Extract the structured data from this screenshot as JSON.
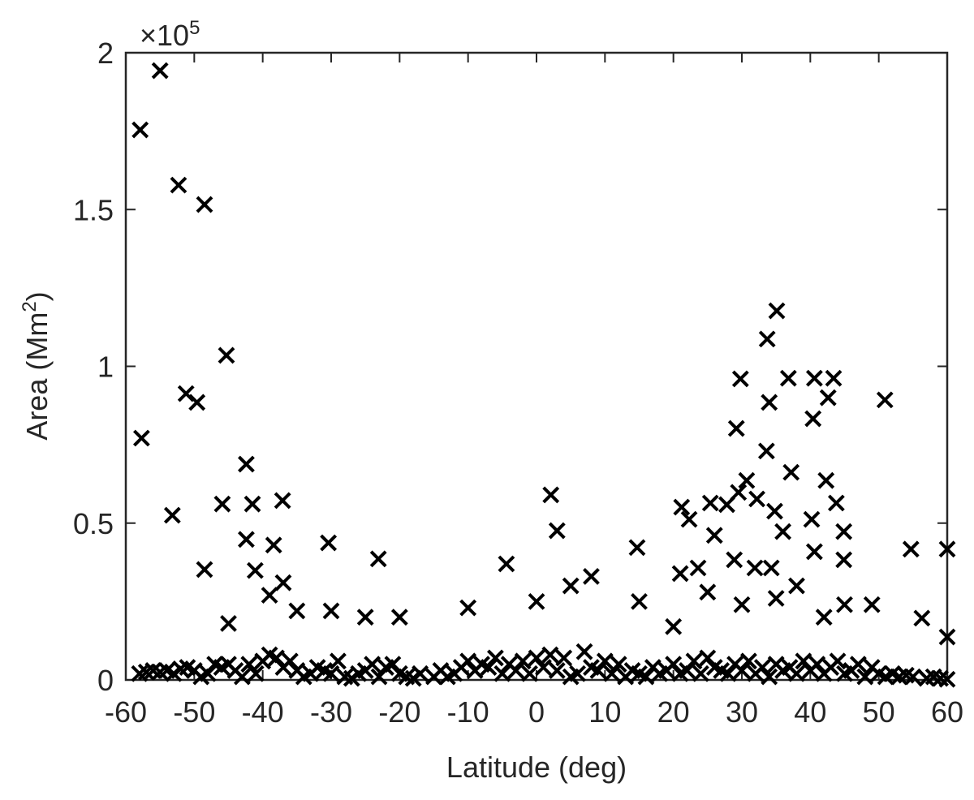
{
  "chart_data": {
    "type": "scatter",
    "x_label": "Latitude (deg)",
    "y_label_parts": [
      "Area (Mm",
      "2",
      ")"
    ],
    "y_exponent_base": "×10",
    "y_exponent": "5",
    "xlim": [
      -60,
      60
    ],
    "xticks": [
      -60,
      -50,
      -40,
      -30,
      -20,
      -10,
      0,
      10,
      20,
      30,
      40,
      50,
      60
    ],
    "ylim": [
      0,
      2
    ],
    "yticks": [
      0,
      0.5,
      1,
      1.5,
      2
    ],
    "color": "#000000",
    "marker": "x",
    "grid": false,
    "x": [
      -57.9,
      -55.0,
      -57.7,
      -52.3,
      -48.5,
      -51.2,
      -49.6,
      -53.2,
      -48.5,
      -45.3,
      -42.4,
      -45.9,
      -41.5,
      -42.4,
      -41.1,
      -37.1,
      -38.4,
      -30.4,
      -23.1,
      2.1,
      3.0,
      -4.4,
      14.7,
      21.2,
      21.0,
      33.7,
      35.1,
      29.8,
      29.2,
      34.0,
      33.6,
      37.2,
      36.8,
      40.6,
      43.4,
      40.4,
      42.6,
      50.9,
      42.3,
      43.8,
      44.9,
      54.7,
      60,
      60,
      56.3,
      30.7,
      29.5,
      32.2,
      34.8,
      22.3,
      25.4,
      27.8,
      36.0,
      31.9,
      34.3,
      40.2,
      40.6,
      44.9,
      28.9,
      26.0,
      23.6,
      -58,
      -57,
      -56,
      -55,
      -54,
      -53,
      -52,
      -51,
      -50,
      -49,
      -48,
      -47,
      -46,
      -45,
      -44,
      -43,
      -42,
      -41,
      -40,
      -39,
      -38,
      -37,
      -36,
      -35,
      -34,
      -33,
      -32,
      -31,
      -30,
      -29,
      -28,
      -27,
      -26,
      -25,
      -24,
      -23,
      -22,
      -21,
      -20,
      -19,
      -18,
      -17,
      -15,
      -14,
      -13,
      -12,
      -11,
      -10,
      -9,
      -8,
      -7,
      -6,
      -5,
      -4,
      -3,
      -2,
      -1,
      0,
      1,
      2,
      3,
      4,
      5,
      6,
      7,
      8,
      9,
      10,
      11,
      12,
      13,
      14,
      15,
      16,
      17,
      18,
      19,
      20,
      21,
      22,
      23,
      24,
      25,
      26,
      27,
      28,
      29,
      30,
      31,
      32,
      33,
      34,
      35,
      36,
      37,
      38,
      39,
      40,
      41,
      42,
      43,
      44,
      45,
      46,
      47,
      48,
      49,
      50,
      51,
      52,
      53,
      54,
      55,
      57,
      58,
      59,
      60,
      -39,
      -37,
      -35,
      -25,
      -20,
      -10,
      0,
      5,
      8,
      15,
      25,
      35,
      38,
      45,
      49,
      -45,
      -30,
      20,
      30,
      42
    ],
    "values": [
      1.754,
      1.943,
      0.771,
      1.578,
      1.516,
      0.913,
      0.885,
      0.525,
      0.352,
      1.035,
      0.688,
      0.561,
      0.561,
      0.448,
      0.349,
      0.572,
      0.43,
      0.437,
      0.386,
      0.59,
      0.476,
      0.37,
      0.422,
      0.551,
      0.339,
      1.087,
      1.177,
      0.96,
      0.802,
      0.885,
      0.73,
      0.662,
      0.962,
      0.962,
      0.962,
      0.833,
      0.9,
      0.893,
      0.636,
      0.564,
      0.473,
      0.417,
      0.417,
      0.137,
      0.197,
      0.636,
      0.598,
      0.577,
      0.538,
      0.512,
      0.564,
      0.559,
      0.473,
      0.357,
      0.357,
      0.512,
      0.409,
      0.383,
      0.383,
      0.461,
      0.357,
      0.02,
      0.025,
      0.03,
      0.025,
      0.03,
      0.02,
      0.035,
      0.04,
      0.03,
      0.01,
      0.02,
      0.05,
      0.04,
      0.05,
      0.03,
      0.01,
      0.05,
      0.02,
      0.06,
      0.08,
      0.07,
      0.04,
      0.06,
      0.03,
      0.01,
      0.02,
      0.04,
      0.03,
      0.02,
      0.06,
      0.01,
      0.005,
      0.02,
      0.03,
      0.05,
      0.01,
      0.04,
      0.05,
      0.02,
      0.01,
      0.005,
      0.02,
      0.01,
      0.03,
      0.01,
      0.02,
      0.04,
      0.06,
      0.03,
      0.05,
      0.04,
      0.07,
      0.02,
      0.05,
      0.03,
      0.06,
      0.02,
      0.07,
      0.04,
      0.08,
      0.03,
      0.07,
      0.01,
      0.02,
      0.09,
      0.04,
      0.03,
      0.06,
      0.02,
      0.05,
      0.01,
      0.03,
      0.02,
      0.01,
      0.04,
      0.02,
      0.03,
      0.05,
      0.02,
      0.03,
      0.06,
      0.02,
      0.07,
      0.04,
      0.03,
      0.02,
      0.05,
      0.03,
      0.06,
      0.02,
      0.04,
      0.01,
      0.05,
      0.03,
      0.04,
      0.02,
      0.06,
      0.03,
      0.05,
      0.02,
      0.04,
      0.06,
      0.02,
      0.03,
      0.05,
      0.01,
      0.04,
      0.02,
      0.01,
      0.02,
      0.01,
      0.015,
      0.01,
      0.005,
      0.01,
      0.005,
      0.002,
      0.27,
      0.31,
      0.22,
      0.2,
      0.2,
      0.23,
      0.25,
      0.3,
      0.33,
      0.25,
      0.28,
      0.26,
      0.3,
      0.24,
      0.24,
      0.18,
      0.22,
      0.17,
      0.24,
      0.2
    ]
  }
}
